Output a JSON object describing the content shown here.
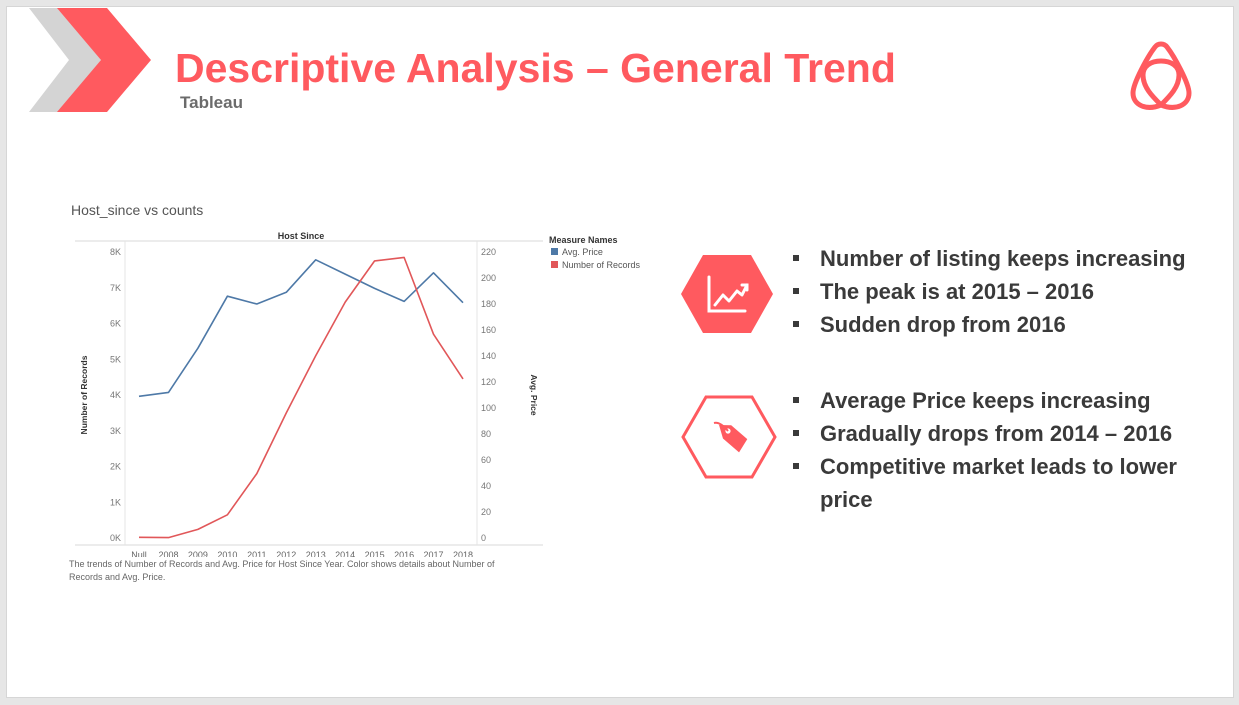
{
  "slide": {
    "title": "Descriptive Analysis – General Trend",
    "subtitle": "Tableau",
    "accent_color": "#ff5a5f",
    "logo_icon": "airbnb-logo-icon"
  },
  "chart_data": {
    "type": "line",
    "title": "Host_since vs counts",
    "subtitle": "Host Since",
    "categories": [
      "Null",
      "2008",
      "2009",
      "2010",
      "2011",
      "2012",
      "2013",
      "2014",
      "2015",
      "2016",
      "2017",
      "2018"
    ],
    "series": [
      {
        "name": "Avg. Price",
        "axis": "right",
        "color": "#4e79a7",
        "values": [
          109,
          112,
          146,
          186,
          180,
          189,
          214,
          203,
          192,
          182,
          204,
          181
        ]
      },
      {
        "name": "Number of Records",
        "axis": "left",
        "color": "#e15759",
        "values": [
          20,
          10,
          240,
          650,
          1800,
          3500,
          5100,
          6600,
          7750,
          7850,
          5700,
          4450
        ]
      }
    ],
    "ylabel": "Number of Records",
    "ylim": [
      0,
      8000
    ],
    "yticks": [
      "0K",
      "1K",
      "2K",
      "3K",
      "4K",
      "5K",
      "6K",
      "7K",
      "8K"
    ],
    "y2label": "Avg. Price",
    "y2lim": [
      0,
      220
    ],
    "y2ticks": [
      "0",
      "20",
      "40",
      "60",
      "80",
      "100",
      "120",
      "140",
      "160",
      "180",
      "200",
      "220"
    ],
    "legend_title": "Measure Names",
    "legend_position": "top-right",
    "caption": "The trends of Number of Records and Avg. Price for Host Since Year.  Color shows details about Number of Records and Avg. Price."
  },
  "insights": [
    {
      "icon": "trend-chart-icon",
      "bullets": [
        "Number of listing keeps increasing",
        "The peak is at 2015 – 2016",
        "Sudden drop from 2016"
      ]
    },
    {
      "icon": "price-tag-icon",
      "bullets": [
        "Average Price keeps increasing",
        "Gradually drops from 2014 – 2016",
        "Competitive market leads to lower price"
      ]
    }
  ]
}
